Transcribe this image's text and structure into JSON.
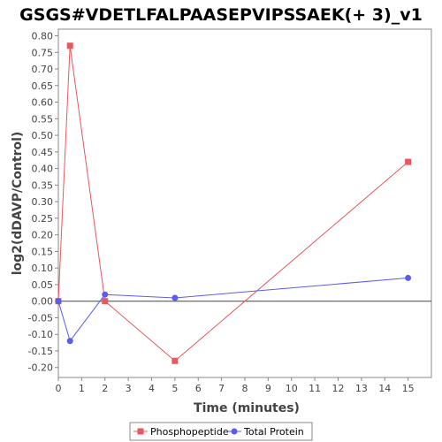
{
  "chart_data": {
    "type": "line",
    "title": "GSGS#VDETLFALPAASEPVIPSSAEK(+ 3)_v1",
    "xlabel": "Time (minutes)",
    "ylabel": "log2(dDAVP/Control)",
    "xlim": [
      0,
      16
    ],
    "ylim": [
      -0.23,
      0.82
    ],
    "xticks": [
      0,
      1,
      2,
      3,
      4,
      5,
      6,
      7,
      8,
      9,
      10,
      11,
      12,
      13,
      14,
      15
    ],
    "yticks": [
      -0.2,
      -0.15,
      -0.1,
      -0.05,
      0.0,
      0.05,
      0.1,
      0.15,
      0.2,
      0.25,
      0.3,
      0.35,
      0.4,
      0.45,
      0.5,
      0.55,
      0.6,
      0.65,
      0.7,
      0.75,
      0.8
    ],
    "grid": false,
    "legend_position": "bottom",
    "series": [
      {
        "name": "Phosphopeptide",
        "color": "#e8585e",
        "marker": "square",
        "x": [
          0,
          0.5,
          2,
          5,
          15
        ],
        "y": [
          0.0,
          0.77,
          0.0,
          -0.18,
          0.42
        ]
      },
      {
        "name": "Total Protein",
        "color": "#5b5bf0",
        "marker": "circle",
        "x": [
          0,
          0.5,
          2,
          5,
          15
        ],
        "y": [
          0.0,
          -0.12,
          0.02,
          0.01,
          0.07
        ]
      }
    ]
  }
}
